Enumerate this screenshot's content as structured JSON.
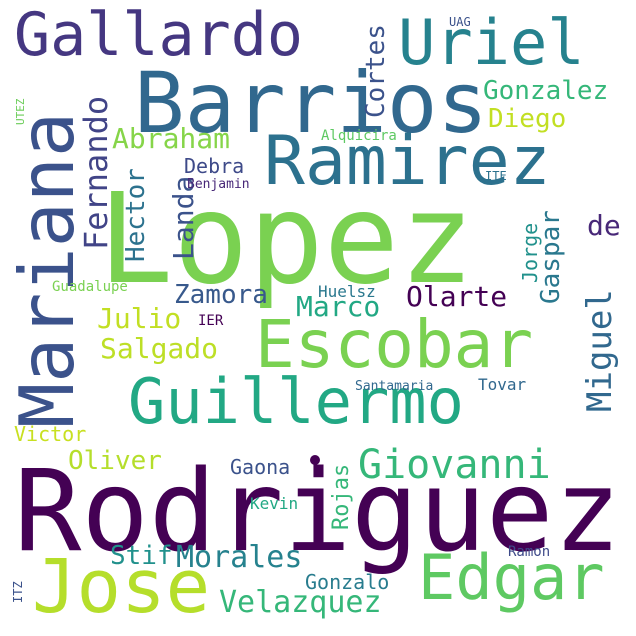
{
  "words": [
    {
      "text": "Lopez",
      "color": "#7ad151"
    },
    {
      "text": "Rodriguez",
      "color": "#440154"
    },
    {
      "text": "Barrios",
      "color": "#31688e"
    },
    {
      "text": "Ramirez",
      "color": "#2c718e"
    },
    {
      "text": "Mariana",
      "color": "#3b528b"
    },
    {
      "text": "Gallardo",
      "color": "#453781"
    },
    {
      "text": "Uriel",
      "color": "#26828e"
    },
    {
      "text": "Escobar",
      "color": "#7ad151"
    },
    {
      "text": "Guillermo",
      "color": "#22a884"
    },
    {
      "text": "Jose",
      "color": "#b5de2b"
    },
    {
      "text": "Edgar",
      "color": "#5ec962"
    },
    {
      "text": "Giovanni",
      "color": "#35b779"
    },
    {
      "text": "Morales",
      "color": "#26828e"
    },
    {
      "text": "Velazquez",
      "color": "#35b779"
    },
    {
      "text": "Fernando",
      "color": "#414487"
    },
    {
      "text": "Abraham",
      "color": "#86d549"
    },
    {
      "text": "Cortes",
      "color": "#3b528b"
    },
    {
      "text": "Gonzalez",
      "color": "#35b779"
    },
    {
      "text": "Diego",
      "color": "#c2df23"
    },
    {
      "text": "Hector",
      "color": "#2c728e"
    },
    {
      "text": "Landa",
      "color": "#3b528b"
    },
    {
      "text": "Debra",
      "color": "#3e4a89"
    },
    {
      "text": "Benjamin",
      "color": "#482878"
    },
    {
      "text": "Alquicira",
      "color": "#5ec962"
    },
    {
      "text": "UAG",
      "color": "#3b528b"
    },
    {
      "text": "UTEZ",
      "color": "#6ccd5a"
    },
    {
      "text": "ITE",
      "color": "#2c728e"
    },
    {
      "text": "Jorge",
      "color": "#21918c"
    },
    {
      "text": "Gaspar",
      "color": "#2a788e"
    },
    {
      "text": "de",
      "color": "#482878"
    },
    {
      "text": "Zamora",
      "color": "#38598c"
    },
    {
      "text": "Olarte",
      "color": "#440154"
    },
    {
      "text": "Marco",
      "color": "#22a884"
    },
    {
      "text": "Huelsz",
      "color": "#2a788e"
    },
    {
      "text": "Miguel",
      "color": "#31688e"
    },
    {
      "text": "Guadalupe",
      "color": "#7ad151"
    },
    {
      "text": "Julio",
      "color": "#c2df23"
    },
    {
      "text": "IER",
      "color": "#440154"
    },
    {
      "text": "Salgado",
      "color": "#bddf26"
    },
    {
      "text": "Santamaria",
      "color": "#31688e"
    },
    {
      "text": "Tovar",
      "color": "#31688e"
    },
    {
      "text": "Victor",
      "color": "#c8e020"
    },
    {
      "text": "Oliver",
      "color": "#b5de2b"
    },
    {
      "text": "Gaona",
      "color": "#3b528b"
    },
    {
      "text": "Rojas",
      "color": "#35b779"
    },
    {
      "text": "Kevin",
      "color": "#22a884"
    },
    {
      "text": "Stif",
      "color": "#21918c"
    },
    {
      "text": "Ramon",
      "color": "#3e4a89"
    },
    {
      "text": "Gonzalo",
      "color": "#287c8e"
    },
    {
      "text": "ITZ",
      "color": "#3b528b"
    }
  ]
}
